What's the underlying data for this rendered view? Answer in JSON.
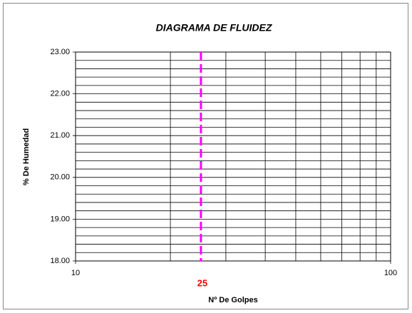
{
  "chart_data": {
    "type": "line",
    "title": "DIAGRAMA DE FLUIDEZ",
    "xlabel": "Nº De Golpes",
    "ylabel": "% De Humedad",
    "xscale": "log",
    "xlim": [
      10,
      100
    ],
    "xticks": [
      10,
      100
    ],
    "xminor": [
      20,
      30,
      40,
      50,
      60,
      70,
      80,
      90
    ],
    "ylim": [
      18,
      23
    ],
    "yticks": [
      {
        "value": 18,
        "label": "18.00"
      },
      {
        "value": 19,
        "label": "19.00"
      },
      {
        "value": 20,
        "label": "20.00"
      },
      {
        "value": 21,
        "label": "21.00"
      },
      {
        "value": 22,
        "label": "22.00"
      },
      {
        "value": 23,
        "label": "23.00"
      }
    ],
    "yminor": [
      18.2,
      18.4,
      18.6,
      18.8,
      19.2,
      19.4,
      19.6,
      19.8,
      20.2,
      20.4,
      20.6,
      20.8,
      21.2,
      21.4,
      21.6,
      21.8,
      22.2,
      22.4,
      22.6,
      22.8
    ],
    "grid": true,
    "vline": {
      "x": 25,
      "color": "#ff00ff",
      "label_color": "#ff0000"
    }
  }
}
